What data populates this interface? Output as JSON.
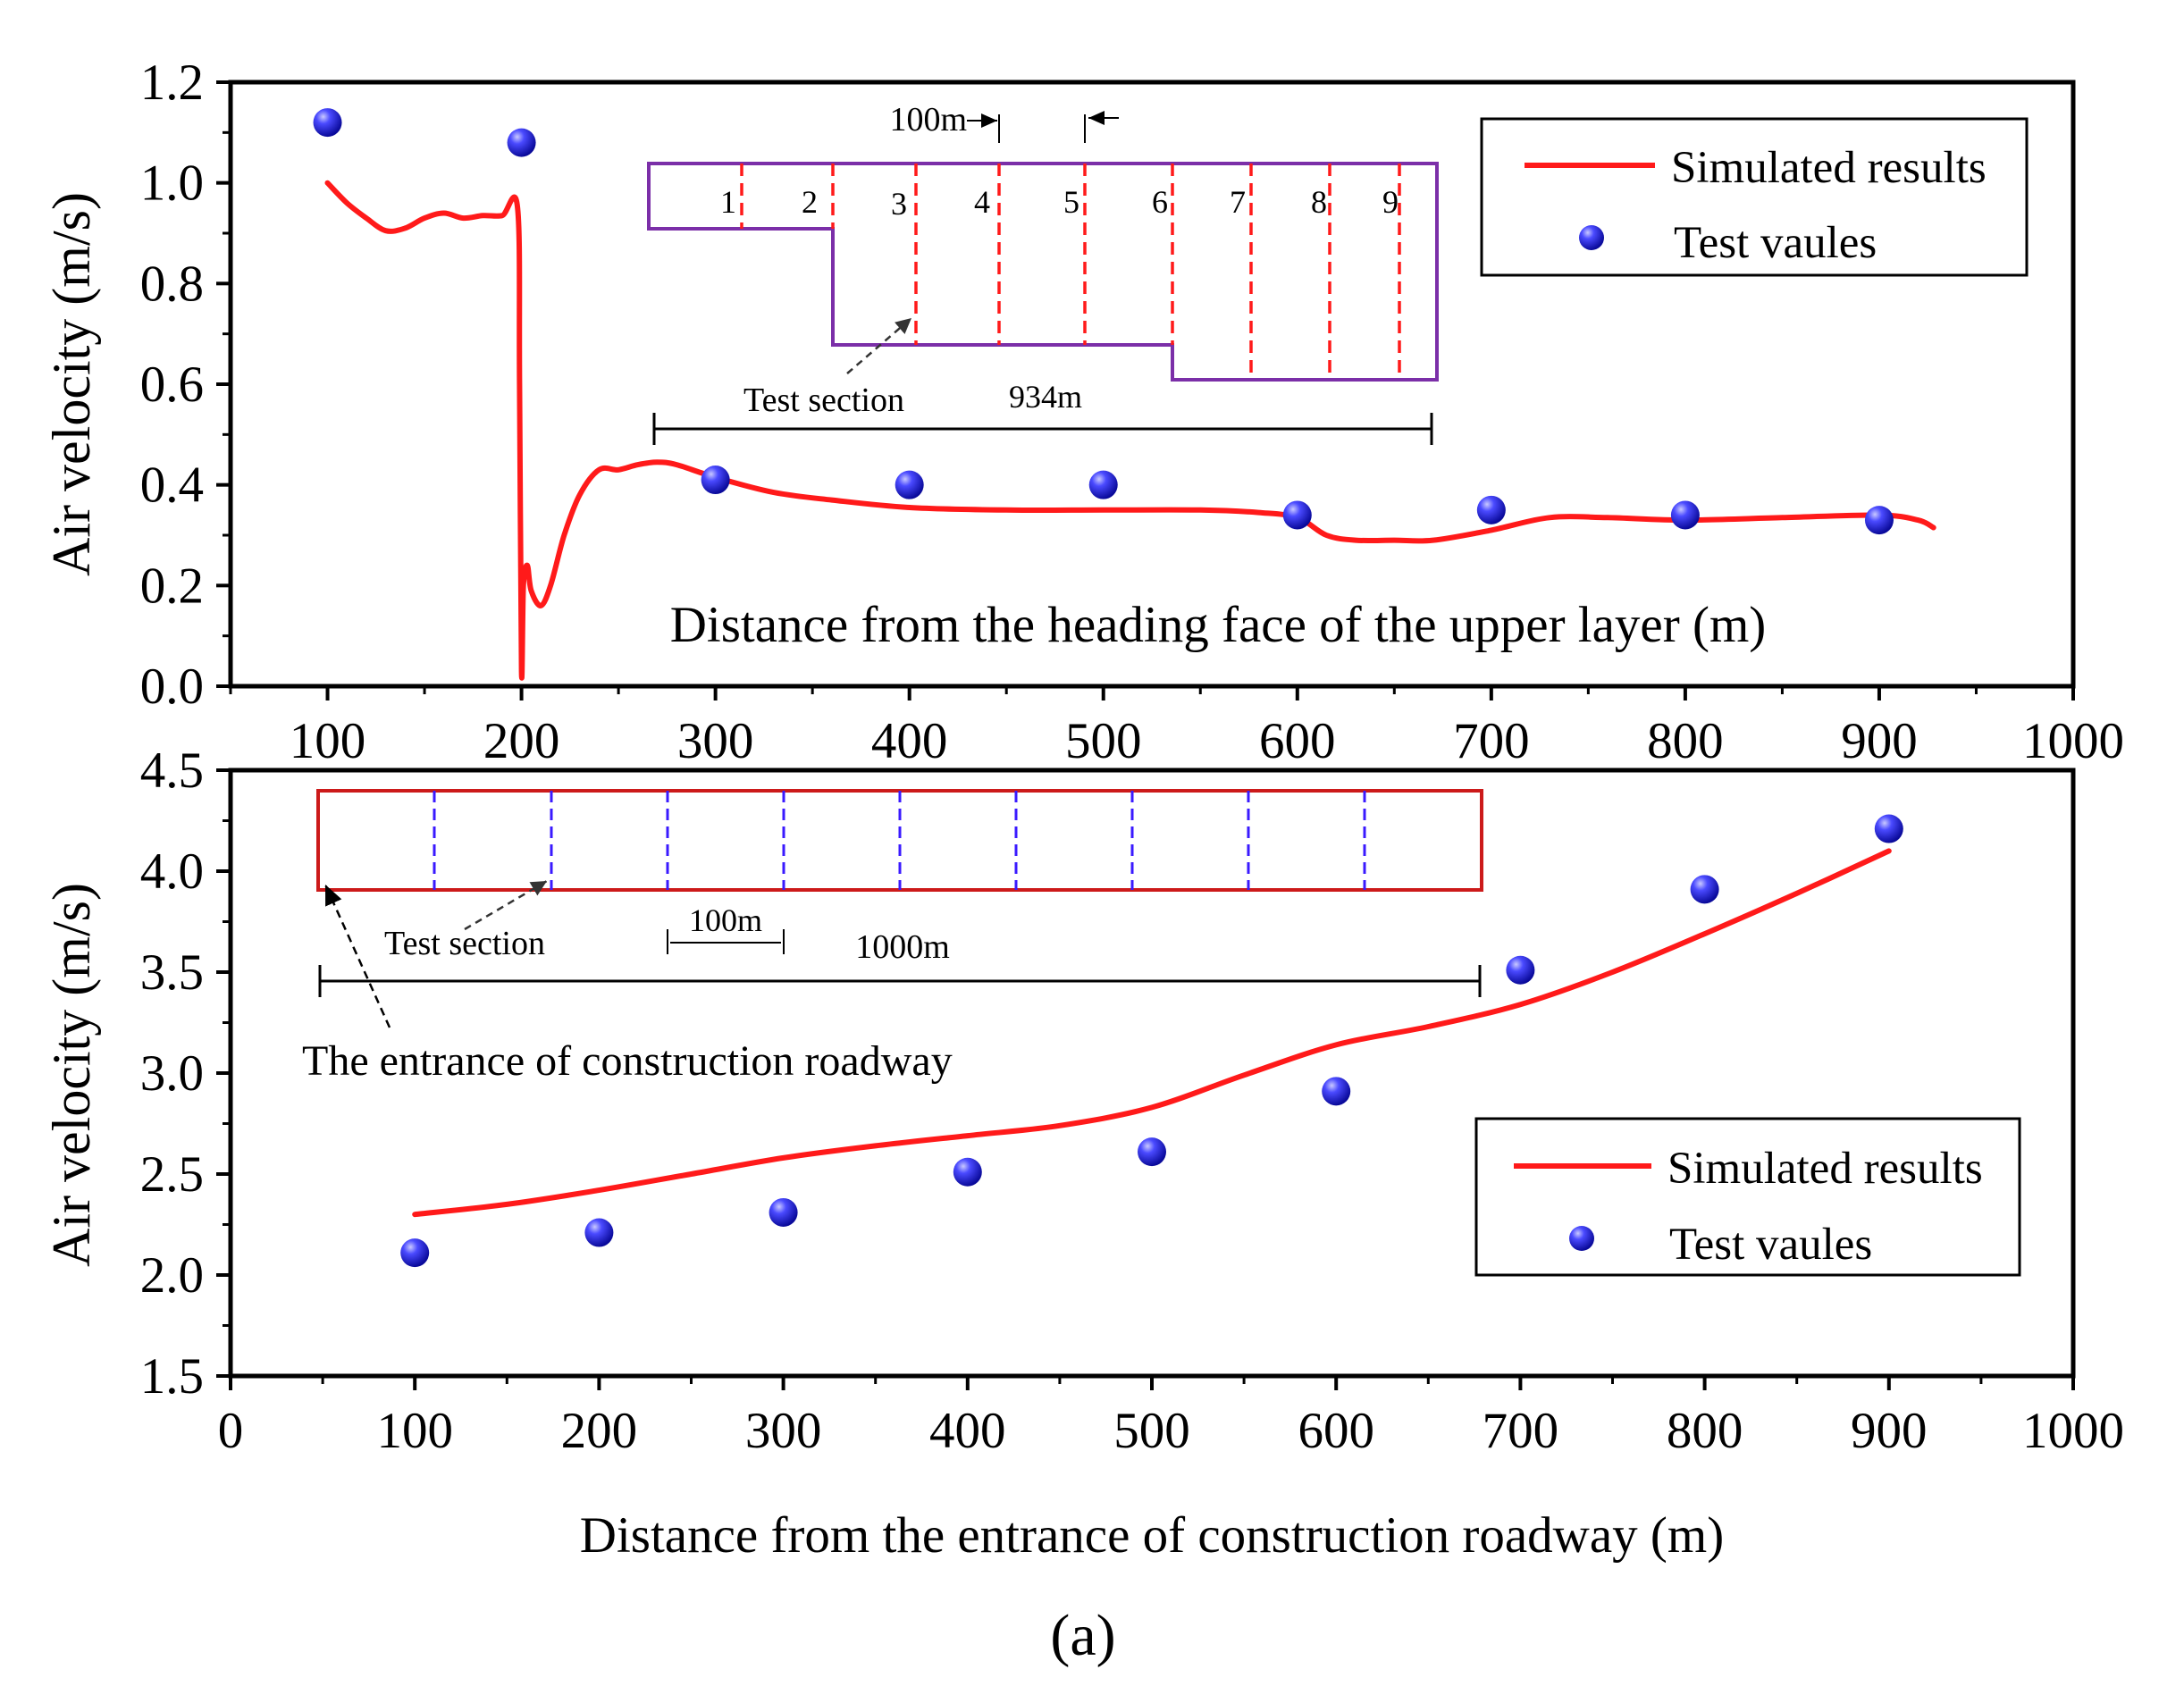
{
  "figure": {
    "panel_label": "(a)"
  },
  "chart_data": [
    {
      "type": "line",
      "id": "upper",
      "title": "",
      "xlabel": "Distance from the heading face of the upper layer (m)",
      "ylabel": "Air velocity (m/s)",
      "xlim": [
        50,
        1000
      ],
      "ylim": [
        0.0,
        1.2
      ],
      "xticks": [
        100,
        200,
        300,
        400,
        500,
        600,
        700,
        800,
        900,
        1000
      ],
      "yticks": [
        0.0,
        0.2,
        0.4,
        0.6,
        0.8,
        1.0,
        1.2
      ],
      "xtick_labels": [
        "100",
        "200",
        "300",
        "400",
        "500",
        "600",
        "700",
        "800",
        "900",
        "1000"
      ],
      "ytick_labels": [
        "0.0",
        "0.2",
        "0.4",
        "0.6",
        "0.8",
        "1.0",
        "1.2"
      ],
      "legend_position": "top-right",
      "series": [
        {
          "name": "Simulated results",
          "kind": "line",
          "color": "#ff1a1a",
          "x": [
            100,
            110,
            120,
            130,
            140,
            150,
            160,
            170,
            180,
            190,
            198,
            199,
            200,
            201,
            203,
            205,
            210,
            215,
            222,
            230,
            240,
            250,
            260,
            270,
            280,
            300,
            330,
            360,
            400,
            450,
            500,
            550,
            580,
            600,
            615,
            630,
            650,
            670,
            700,
            730,
            760,
            800,
            850,
            900,
            920,
            928
          ],
          "values": [
            1.0,
            0.96,
            0.93,
            0.905,
            0.91,
            0.93,
            0.94,
            0.93,
            0.935,
            0.935,
            0.95,
            0.6,
            0.03,
            0.2,
            0.24,
            0.19,
            0.16,
            0.2,
            0.3,
            0.38,
            0.43,
            0.43,
            0.44,
            0.445,
            0.44,
            0.415,
            0.385,
            0.37,
            0.355,
            0.35,
            0.35,
            0.35,
            0.345,
            0.335,
            0.3,
            0.29,
            0.29,
            0.29,
            0.31,
            0.335,
            0.335,
            0.33,
            0.335,
            0.34,
            0.33,
            0.315
          ]
        },
        {
          "name": "Test vaules",
          "kind": "scatter",
          "color": "#1a1aff",
          "x": [
            100,
            200,
            300,
            400,
            500,
            600,
            700,
            800,
            900
          ],
          "values": [
            1.12,
            1.08,
            0.41,
            0.4,
            0.4,
            0.34,
            0.35,
            0.34,
            0.33
          ]
        }
      ],
      "inset": {
        "top_label": "100m",
        "section_numbers": [
          "1",
          "2",
          "3",
          "4",
          "5",
          "6",
          "7",
          "8",
          "9"
        ],
        "test_section_label": "Test section",
        "length_label": "934m",
        "outline_color": "#7b2fa8",
        "dash_color": "#ff1a1a"
      }
    },
    {
      "type": "line",
      "id": "lower",
      "title": "",
      "xlabel": "Distance from the entrance of construction roadway (m)",
      "ylabel": "Air velocity (m/s)",
      "xlim": [
        0,
        1000
      ],
      "ylim": [
        1.5,
        4.5
      ],
      "xticks": [
        0,
        100,
        200,
        300,
        400,
        500,
        600,
        700,
        800,
        900,
        1000
      ],
      "yticks": [
        1.5,
        2.0,
        2.5,
        3.0,
        3.5,
        4.0,
        4.5
      ],
      "xtick_labels": [
        "0",
        "100",
        "200",
        "300",
        "400",
        "500",
        "600",
        "700",
        "800",
        "900",
        "1000"
      ],
      "ytick_labels": [
        "1.5",
        "2.0",
        "2.5",
        "3.0",
        "3.5",
        "4.0",
        "4.5"
      ],
      "legend_position": "middle-right",
      "series": [
        {
          "name": "Simulated results",
          "kind": "line",
          "color": "#ff1a1a",
          "x": [
            100,
            150,
            200,
            250,
            300,
            350,
            400,
            450,
            500,
            550,
            600,
            650,
            700,
            750,
            800,
            850,
            900
          ],
          "values": [
            2.3,
            2.35,
            2.42,
            2.5,
            2.58,
            2.64,
            2.69,
            2.74,
            2.83,
            2.99,
            3.14,
            3.23,
            3.34,
            3.5,
            3.69,
            3.89,
            4.1
          ]
        },
        {
          "name": "Test vaules",
          "kind": "scatter",
          "color": "#1a1aff",
          "x": [
            100,
            200,
            300,
            400,
            500,
            600,
            700,
            800,
            900
          ],
          "values": [
            2.11,
            2.21,
            2.31,
            2.51,
            2.61,
            2.91,
            3.51,
            3.91,
            4.21
          ]
        }
      ],
      "inset": {
        "test_section_label": "Test section",
        "spacing_label": "100m",
        "length_label": "1000m",
        "entrance_label": "The entrance of construction roadway",
        "outline_color": "#cc1a1a",
        "dash_color": "#3a1aff"
      }
    }
  ]
}
